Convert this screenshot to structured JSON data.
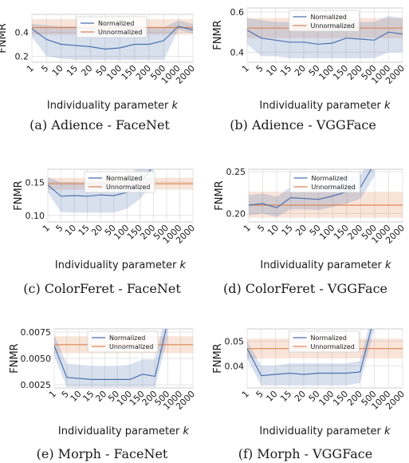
{
  "chart_data": [
    {
      "type": "line",
      "caption": "(a) Adience - FaceNet",
      "xlabel": "Individuality parameter k",
      "ylabel": "FNMR",
      "x": [
        "1",
        "5",
        "10",
        "15",
        "20",
        "50",
        "100",
        "150",
        "200",
        "500",
        "1000",
        "2000"
      ],
      "yticks": [
        "0.2",
        "0.4"
      ],
      "ylim": [
        0.15,
        0.55
      ],
      "legend": "top-center",
      "grid": true,
      "series": [
        {
          "name": "Normalized",
          "color": "#4c72b0",
          "values": [
            0.43,
            0.34,
            0.3,
            0.29,
            0.28,
            0.26,
            0.27,
            0.3,
            0.3,
            0.33,
            0.45,
            0.42
          ],
          "band_lo": [
            0.36,
            0.2,
            0.18,
            0.17,
            0.17,
            0.17,
            0.17,
            0.17,
            0.17,
            0.17,
            0.42,
            0.39
          ],
          "band_hi": [
            0.47,
            0.46,
            0.45,
            0.45,
            0.44,
            0.43,
            0.44,
            0.44,
            0.44,
            0.44,
            0.5,
            0.47
          ]
        },
        {
          "name": "Unnormalized",
          "color": "#dd8452",
          "values": [
            0.44,
            0.44,
            0.44,
            0.44,
            0.44,
            0.44,
            0.44,
            0.44,
            0.44,
            0.44,
            0.44,
            0.44
          ],
          "band_lo": [
            0.38,
            0.38,
            0.38,
            0.38,
            0.38,
            0.38,
            0.38,
            0.38,
            0.38,
            0.38,
            0.38,
            0.38
          ],
          "band_hi": [
            0.51,
            0.51,
            0.51,
            0.51,
            0.51,
            0.51,
            0.51,
            0.51,
            0.51,
            0.51,
            0.51,
            0.51
          ]
        }
      ]
    },
    {
      "type": "line",
      "caption": "(b) Adience - VGGFace",
      "xlabel": "Individuality parameter k",
      "ylabel": "FNMR",
      "x": [
        "1",
        "5",
        "10",
        "15",
        "20",
        "50",
        "100",
        "150",
        "200",
        "500",
        "1000",
        "2000"
      ],
      "yticks": [
        "0.4",
        "0.6"
      ],
      "ylim": [
        0.35,
        0.62
      ],
      "legend": "top-center",
      "grid": true,
      "series": [
        {
          "name": "Normalized",
          "color": "#4c72b0",
          "values": [
            0.51,
            0.47,
            0.46,
            0.45,
            0.45,
            0.44,
            0.445,
            0.47,
            0.465,
            0.46,
            0.5,
            0.49
          ],
          "band_lo": [
            0.44,
            0.38,
            0.38,
            0.37,
            0.37,
            0.37,
            0.37,
            0.37,
            0.37,
            0.37,
            0.4,
            0.4
          ],
          "band_hi": [
            0.57,
            0.56,
            0.55,
            0.55,
            0.54,
            0.54,
            0.54,
            0.55,
            0.55,
            0.55,
            0.58,
            0.57
          ]
        },
        {
          "name": "Unnormalized",
          "color": "#dd8452",
          "values": [
            0.52,
            0.52,
            0.52,
            0.52,
            0.52,
            0.52,
            0.52,
            0.52,
            0.52,
            0.52,
            0.52,
            0.52
          ],
          "band_lo": [
            0.47,
            0.47,
            0.47,
            0.47,
            0.47,
            0.47,
            0.47,
            0.47,
            0.47,
            0.47,
            0.47,
            0.47
          ],
          "band_hi": [
            0.57,
            0.57,
            0.57,
            0.57,
            0.57,
            0.57,
            0.57,
            0.57,
            0.57,
            0.57,
            0.57,
            0.57
          ]
        }
      ]
    },
    {
      "type": "line",
      "caption": "(c) ColorFeret - FaceNet",
      "xlabel": "Individuality parameter k",
      "ylabel": "FNMR",
      "x": [
        "1",
        "5",
        "10",
        "15",
        "20",
        "50",
        "100",
        "150",
        "200",
        "500",
        "1000",
        "2000"
      ],
      "yticks": [
        "0.10",
        "0.15"
      ],
      "ylim": [
        0.09,
        0.17
      ],
      "legend": "top-center",
      "grid": true,
      "series": [
        {
          "name": "Normalized",
          "color": "#4c72b0",
          "values": [
            0.146,
            0.129,
            0.13,
            0.129,
            0.131,
            0.13,
            0.135,
            0.15,
            0.175,
            null,
            null,
            null
          ],
          "band_lo": [
            0.135,
            0.105,
            0.104,
            0.104,
            0.104,
            0.104,
            0.11,
            0.125,
            0.15,
            null,
            null,
            null
          ],
          "band_hi": [
            0.158,
            0.15,
            0.15,
            0.15,
            0.152,
            0.152,
            0.16,
            0.175,
            0.2,
            null,
            null,
            null
          ]
        },
        {
          "name": "Unnormalized",
          "color": "#dd8452",
          "values": [
            0.148,
            0.148,
            0.148,
            0.148,
            0.148,
            0.148,
            0.148,
            0.148,
            0.148,
            0.148,
            0.148,
            0.148
          ],
          "band_lo": [
            0.139,
            0.139,
            0.139,
            0.139,
            0.139,
            0.139,
            0.139,
            0.139,
            0.139,
            0.139,
            0.139,
            0.139
          ],
          "band_hi": [
            0.157,
            0.157,
            0.157,
            0.157,
            0.157,
            0.157,
            0.157,
            0.157,
            0.157,
            0.157,
            0.157,
            0.157
          ]
        }
      ]
    },
    {
      "type": "line",
      "caption": "(d) ColorFeret - VGGFace",
      "xlabel": "Individuality parameter k",
      "ylabel": "FNMR",
      "x": [
        "1",
        "5",
        "10",
        "15",
        "20",
        "50",
        "100",
        "150",
        "200",
        "500",
        "1000",
        "2000"
      ],
      "yticks": [
        "0.20",
        "0.25"
      ],
      "ylim": [
        0.19,
        0.253
      ],
      "legend": "top-center",
      "grid": true,
      "series": [
        {
          "name": "Normalized",
          "color": "#4c72b0",
          "values": [
            0.21,
            0.212,
            0.207,
            0.219,
            0.218,
            0.217,
            0.221,
            0.226,
            0.232,
            0.26,
            null,
            null
          ],
          "band_lo": [
            0.198,
            0.2,
            0.196,
            0.205,
            0.205,
            0.204,
            0.208,
            0.212,
            0.218,
            0.245,
            null,
            null
          ],
          "band_hi": [
            0.222,
            0.224,
            0.22,
            0.232,
            0.232,
            0.23,
            0.234,
            0.24,
            0.246,
            0.275,
            null,
            null
          ]
        },
        {
          "name": "Unnormalized",
          "color": "#dd8452",
          "values": [
            0.21,
            0.21,
            0.21,
            0.21,
            0.21,
            0.21,
            0.21,
            0.21,
            0.21,
            0.21,
            0.21,
            0.21
          ],
          "band_lo": [
            0.195,
            0.195,
            0.195,
            0.195,
            0.195,
            0.195,
            0.195,
            0.195,
            0.195,
            0.195,
            0.195,
            0.195
          ],
          "band_hi": [
            0.226,
            0.226,
            0.226,
            0.226,
            0.226,
            0.226,
            0.226,
            0.226,
            0.226,
            0.226,
            0.226,
            0.226
          ]
        }
      ]
    },
    {
      "type": "line",
      "caption": "(e) Morph - FaceNet",
      "xlabel": "Individuality parameter k",
      "ylabel": "FNMR",
      "x": [
        "1",
        "5",
        "10",
        "15",
        "20",
        "50",
        "100",
        "150",
        "200",
        "500",
        "1000",
        "2000"
      ],
      "yticks": [
        "0.0025",
        "0.0050",
        "0.0075"
      ],
      "ylim": [
        0.0022,
        0.0078
      ],
      "legend": "top-center",
      "grid": true,
      "series": [
        {
          "name": "Normalized",
          "color": "#4c72b0",
          "values": [
            0.0062,
            0.0032,
            0.0031,
            0.003,
            0.003,
            0.003,
            0.003,
            0.0035,
            0.0033,
            0.0085,
            null,
            null
          ],
          "band_lo": [
            0.0052,
            0.0023,
            0.0023,
            0.0023,
            0.0023,
            0.0023,
            0.0023,
            0.0023,
            0.0023,
            0.007,
            null,
            null
          ],
          "band_hi": [
            0.0072,
            0.0045,
            0.0044,
            0.0043,
            0.0043,
            0.0043,
            0.0044,
            0.0049,
            0.0049,
            0.01,
            null,
            null
          ]
        },
        {
          "name": "Unnormalized",
          "color": "#dd8452",
          "values": [
            0.0063,
            0.0063,
            0.0063,
            0.0063,
            0.0063,
            0.0063,
            0.0063,
            0.0063,
            0.0063,
            0.0063,
            0.0063,
            0.0063
          ],
          "band_lo": [
            0.0055,
            0.0055,
            0.0055,
            0.0055,
            0.0055,
            0.0055,
            0.0055,
            0.0055,
            0.0055,
            0.0055,
            0.0055,
            0.0055
          ],
          "band_hi": [
            0.0071,
            0.0071,
            0.0071,
            0.0071,
            0.0071,
            0.0071,
            0.0071,
            0.0071,
            0.0071,
            0.0071,
            0.0071,
            0.0071
          ]
        }
      ]
    },
    {
      "type": "line",
      "caption": "(f) Morph - VGGFace",
      "xlabel": "Individuality parameter k",
      "ylabel": "FNMR",
      "x": [
        "1",
        "5",
        "10",
        "15",
        "20",
        "50",
        "100",
        "150",
        "200",
        "500",
        "1000",
        "2000"
      ],
      "yticks": [
        "0.04",
        "0.05"
      ],
      "ylim": [
        0.031,
        0.055
      ],
      "legend": "top-center",
      "grid": true,
      "series": [
        {
          "name": "Normalized",
          "color": "#4c72b0",
          "values": [
            0.047,
            0.036,
            0.0365,
            0.037,
            0.0365,
            0.037,
            0.037,
            0.037,
            0.0375,
            0.06,
            null,
            null
          ],
          "band_lo": [
            0.043,
            0.032,
            0.032,
            0.032,
            0.032,
            0.032,
            0.032,
            0.032,
            0.033,
            0.055,
            null,
            null
          ],
          "band_hi": [
            0.05,
            0.04,
            0.04,
            0.041,
            0.041,
            0.041,
            0.041,
            0.041,
            0.042,
            0.065,
            null,
            null
          ]
        },
        {
          "name": "Unnormalized",
          "color": "#dd8452",
          "values": [
            0.047,
            0.047,
            0.047,
            0.047,
            0.047,
            0.047,
            0.047,
            0.047,
            0.047,
            0.047,
            0.047,
            0.047
          ],
          "band_lo": [
            0.043,
            0.043,
            0.043,
            0.043,
            0.043,
            0.043,
            0.043,
            0.043,
            0.043,
            0.043,
            0.043,
            0.043
          ],
          "band_hi": [
            0.051,
            0.051,
            0.051,
            0.051,
            0.051,
            0.051,
            0.051,
            0.051,
            0.051,
            0.051,
            0.051,
            0.051
          ]
        }
      ]
    }
  ]
}
